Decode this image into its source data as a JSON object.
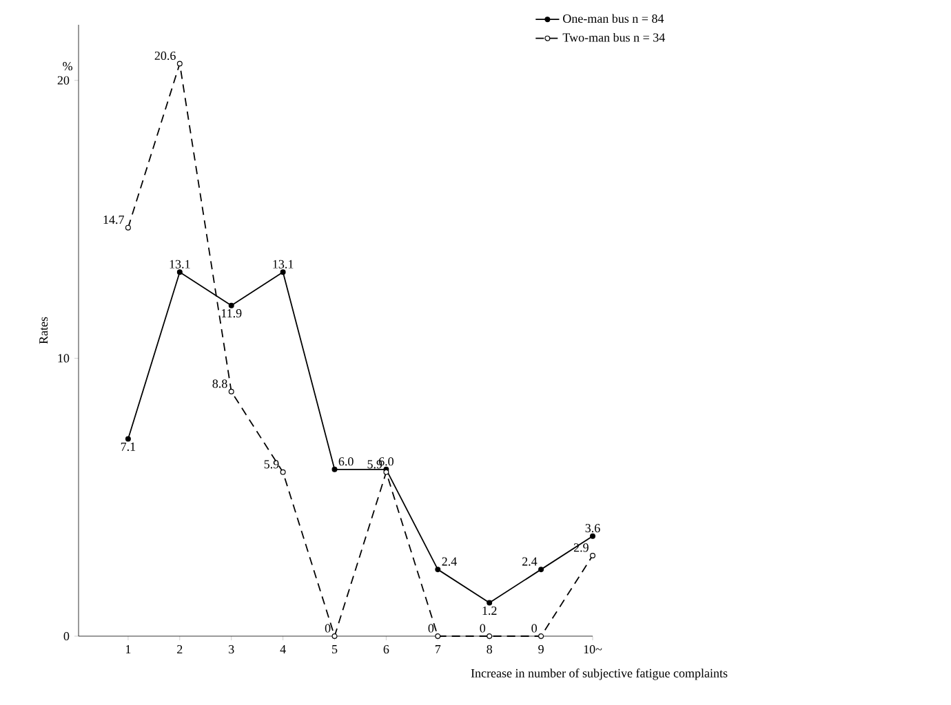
{
  "chart_data": {
    "type": "line",
    "xlabel": "Increase in number of subjective fatigue complaints",
    "ylabel": "Rates",
    "annotations": [
      "%"
    ],
    "categories": [
      "1",
      "2",
      "3",
      "4",
      "5",
      "6",
      "7",
      "8",
      "9",
      "10~"
    ],
    "series": [
      {
        "name": "One-man bus  n = 84",
        "color": "#000000",
        "line_style": "solid",
        "values": [
          7.1,
          13.1,
          11.9,
          13.1,
          6.0,
          6.0,
          2.4,
          1.2,
          2.4,
          3.6
        ],
        "value_labels": [
          "7.1",
          "13.1",
          "11.9",
          "13.1",
          "6.0",
          "6.0",
          "2.4",
          "1.2",
          "2.4",
          "3.6"
        ]
      },
      {
        "name": "Two-man bus  n = 34",
        "color": "#000000",
        "line_style": "dashed",
        "values": [
          14.7,
          20.6,
          8.8,
          5.9,
          0,
          5.9,
          0,
          0,
          0,
          2.9
        ],
        "value_labels": [
          "14.7",
          "20.6",
          "8.8",
          "5.9",
          "0",
          "5.9",
          "0",
          "0",
          "0",
          "2.9"
        ]
      }
    ],
    "ylim": [
      0,
      22
    ],
    "yticks": [
      0,
      10,
      20
    ],
    "marker": "circle",
    "legend": "top right",
    "grid": false
  }
}
